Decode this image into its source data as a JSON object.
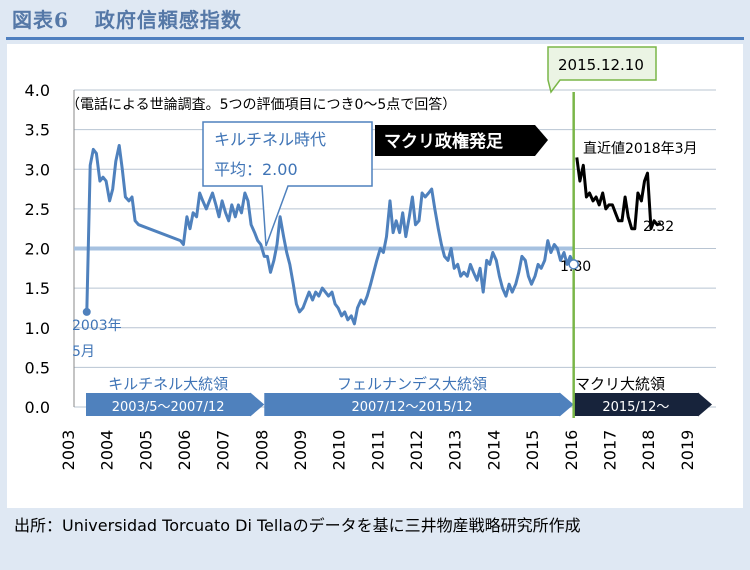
{
  "figure": {
    "label": "図表6",
    "title": "政府信頼感指数",
    "source": "出所：Universidad  Torcuato Di Tellaのデータを基に三井物産戦略研究所作成"
  },
  "chart_data": {
    "type": "line",
    "ylim": [
      0,
      4
    ],
    "yticks": [
      "0.0",
      "0.5",
      "1.0",
      "1.5",
      "2.0",
      "2.5",
      "3.0",
      "3.5",
      "4.0"
    ],
    "xticks": [
      "2003",
      "2004",
      "2005",
      "2006",
      "2007",
      "2008",
      "2009",
      "2010",
      "2011",
      "2012",
      "2013",
      "2014",
      "2015",
      "2016",
      "2017",
      "2018",
      "2019"
    ],
    "grid": "horizontal",
    "series": [
      {
        "color": "#4f81bd",
        "points": [
          [
            2003.33,
            1.2
          ],
          [
            2003.42,
            3.05
          ],
          [
            2003.5,
            3.25
          ],
          [
            2003.58,
            3.2
          ],
          [
            2003.67,
            2.85
          ],
          [
            2003.75,
            2.9
          ],
          [
            2003.83,
            2.85
          ],
          [
            2003.92,
            2.6
          ],
          [
            2004.0,
            2.75
          ],
          [
            2004.08,
            3.1
          ],
          [
            2004.17,
            3.3
          ],
          [
            2004.25,
            3.0
          ],
          [
            2004.33,
            2.65
          ],
          [
            2004.42,
            2.6
          ],
          [
            2004.5,
            2.65
          ],
          [
            2004.58,
            2.35
          ],
          [
            2004.67,
            2.3
          ],
          [
            2005.75,
            2.1
          ],
          [
            2005.83,
            2.05
          ],
          [
            2005.92,
            2.4
          ],
          [
            2006.0,
            2.25
          ],
          [
            2006.08,
            2.45
          ],
          [
            2006.17,
            2.4
          ],
          [
            2006.25,
            2.7
          ],
          [
            2006.33,
            2.6
          ],
          [
            2006.42,
            2.5
          ],
          [
            2006.5,
            2.6
          ],
          [
            2006.58,
            2.7
          ],
          [
            2006.67,
            2.55
          ],
          [
            2006.75,
            2.4
          ],
          [
            2006.83,
            2.6
          ],
          [
            2006.92,
            2.45
          ],
          [
            2007.0,
            2.35
          ],
          [
            2007.08,
            2.55
          ],
          [
            2007.17,
            2.4
          ],
          [
            2007.25,
            2.55
          ],
          [
            2007.33,
            2.45
          ],
          [
            2007.42,
            2.7
          ],
          [
            2007.5,
            2.6
          ],
          [
            2007.58,
            2.3
          ],
          [
            2007.67,
            2.2
          ],
          [
            2007.75,
            2.1
          ],
          [
            2007.83,
            2.05
          ],
          [
            2007.92,
            1.9
          ],
          [
            2008.0,
            1.9
          ],
          [
            2008.08,
            1.7
          ],
          [
            2008.17,
            1.85
          ],
          [
            2008.25,
            2.05
          ],
          [
            2008.33,
            2.4
          ],
          [
            2008.42,
            2.15
          ],
          [
            2008.5,
            1.95
          ],
          [
            2008.58,
            1.8
          ],
          [
            2008.67,
            1.55
          ],
          [
            2008.75,
            1.3
          ],
          [
            2008.83,
            1.2
          ],
          [
            2008.92,
            1.25
          ],
          [
            2009.0,
            1.35
          ],
          [
            2009.08,
            1.45
          ],
          [
            2009.17,
            1.35
          ],
          [
            2009.25,
            1.45
          ],
          [
            2009.33,
            1.4
          ],
          [
            2009.42,
            1.5
          ],
          [
            2009.5,
            1.45
          ],
          [
            2009.58,
            1.4
          ],
          [
            2009.67,
            1.45
          ],
          [
            2009.75,
            1.3
          ],
          [
            2009.83,
            1.25
          ],
          [
            2009.92,
            1.15
          ],
          [
            2010.0,
            1.2
          ],
          [
            2010.08,
            1.1
          ],
          [
            2010.17,
            1.15
          ],
          [
            2010.25,
            1.05
          ],
          [
            2010.33,
            1.25
          ],
          [
            2010.42,
            1.35
          ],
          [
            2010.5,
            1.3
          ],
          [
            2010.58,
            1.4
          ],
          [
            2010.67,
            1.55
          ],
          [
            2010.75,
            1.7
          ],
          [
            2010.83,
            1.85
          ],
          [
            2010.92,
            2.0
          ],
          [
            2011.0,
            1.95
          ],
          [
            2011.08,
            2.15
          ],
          [
            2011.17,
            2.6
          ],
          [
            2011.25,
            2.2
          ],
          [
            2011.33,
            2.35
          ],
          [
            2011.42,
            2.2
          ],
          [
            2011.5,
            2.45
          ],
          [
            2011.58,
            2.15
          ],
          [
            2011.67,
            2.4
          ],
          [
            2011.75,
            2.65
          ],
          [
            2011.83,
            2.3
          ],
          [
            2011.92,
            2.35
          ],
          [
            2012.0,
            2.7
          ],
          [
            2012.08,
            2.65
          ],
          [
            2012.17,
            2.7
          ],
          [
            2012.25,
            2.75
          ],
          [
            2012.33,
            2.5
          ],
          [
            2012.42,
            2.25
          ],
          [
            2012.5,
            2.05
          ],
          [
            2012.58,
            1.9
          ],
          [
            2012.67,
            1.85
          ],
          [
            2012.75,
            2.0
          ],
          [
            2012.83,
            1.75
          ],
          [
            2012.92,
            1.8
          ],
          [
            2013.0,
            1.65
          ],
          [
            2013.08,
            1.7
          ],
          [
            2013.17,
            1.65
          ],
          [
            2013.25,
            1.8
          ],
          [
            2013.33,
            1.7
          ],
          [
            2013.42,
            1.6
          ],
          [
            2013.5,
            1.75
          ],
          [
            2013.58,
            1.45
          ],
          [
            2013.67,
            1.85
          ],
          [
            2013.75,
            1.8
          ],
          [
            2013.83,
            1.95
          ],
          [
            2013.92,
            1.85
          ],
          [
            2014.0,
            1.65
          ],
          [
            2014.08,
            1.5
          ],
          [
            2014.17,
            1.4
          ],
          [
            2014.25,
            1.55
          ],
          [
            2014.33,
            1.45
          ],
          [
            2014.42,
            1.55
          ],
          [
            2014.5,
            1.7
          ],
          [
            2014.58,
            1.9
          ],
          [
            2014.67,
            1.85
          ],
          [
            2014.75,
            1.65
          ],
          [
            2014.83,
            1.55
          ],
          [
            2014.92,
            1.65
          ],
          [
            2015.0,
            1.8
          ],
          [
            2015.08,
            1.75
          ],
          [
            2015.17,
            1.85
          ],
          [
            2015.25,
            2.1
          ],
          [
            2015.33,
            1.95
          ],
          [
            2015.42,
            2.05
          ],
          [
            2015.5,
            2.0
          ],
          [
            2015.58,
            1.85
          ],
          [
            2015.67,
            1.95
          ],
          [
            2015.75,
            1.8
          ],
          [
            2015.83,
            1.9
          ],
          [
            2015.92,
            1.8
          ]
        ]
      },
      {
        "color": "#000000",
        "points": [
          [
            2016.0,
            3.15
          ],
          [
            2016.08,
            2.85
          ],
          [
            2016.17,
            3.05
          ],
          [
            2016.25,
            2.65
          ],
          [
            2016.33,
            2.7
          ],
          [
            2016.42,
            2.6
          ],
          [
            2016.5,
            2.65
          ],
          [
            2016.58,
            2.55
          ],
          [
            2016.67,
            2.7
          ],
          [
            2016.75,
            2.5
          ],
          [
            2016.83,
            2.55
          ],
          [
            2016.92,
            2.55
          ],
          [
            2017.0,
            2.45
          ],
          [
            2017.08,
            2.35
          ],
          [
            2017.17,
            2.35
          ],
          [
            2017.25,
            2.65
          ],
          [
            2017.33,
            2.4
          ],
          [
            2017.42,
            2.25
          ],
          [
            2017.5,
            2.25
          ],
          [
            2017.58,
            2.7
          ],
          [
            2017.67,
            2.6
          ],
          [
            2017.75,
            2.85
          ],
          [
            2017.83,
            2.95
          ],
          [
            2017.92,
            2.25
          ],
          [
            2018.0,
            2.35
          ],
          [
            2018.08,
            2.3
          ],
          [
            2018.17,
            2.32
          ]
        ]
      }
    ],
    "reference_line": {
      "value": 2.0,
      "color": "#a6c1e0"
    },
    "annotations": {
      "note": "（電話による世論調査。5つの評価項目につき0～5点で回答）",
      "kirchner_avg_line1": "キルチネル時代",
      "kirchner_avg_line2": "平均：2.00",
      "macri_start": "マクリ政権発足",
      "date_flag": "2015.12.10",
      "latest_label": "直近値2018年3月",
      "latest_value": "2.32",
      "first_point_line1": "2003年",
      "first_point_line2": "5月",
      "last_point_value": "1.80"
    },
    "eras": [
      {
        "title": "キルチネル大統領",
        "range": "2003/5～2007/12",
        "start": 2003.33,
        "end": 2007.92,
        "fill": "#4f81bd"
      },
      {
        "title": "フェルナンデス大統領",
        "range": "2007/12～2015/12",
        "start": 2007.92,
        "end": 2015.92,
        "fill": "#4f81bd"
      },
      {
        "title": "マクリ大統領",
        "range": "2015/12～",
        "start": 2015.92,
        "end": 2019.6,
        "fill": "#17233b"
      }
    ],
    "colors": {
      "divider": "#7ab648",
      "blue_text": "#3f74b6",
      "grid": "#b8c4d2"
    }
  }
}
